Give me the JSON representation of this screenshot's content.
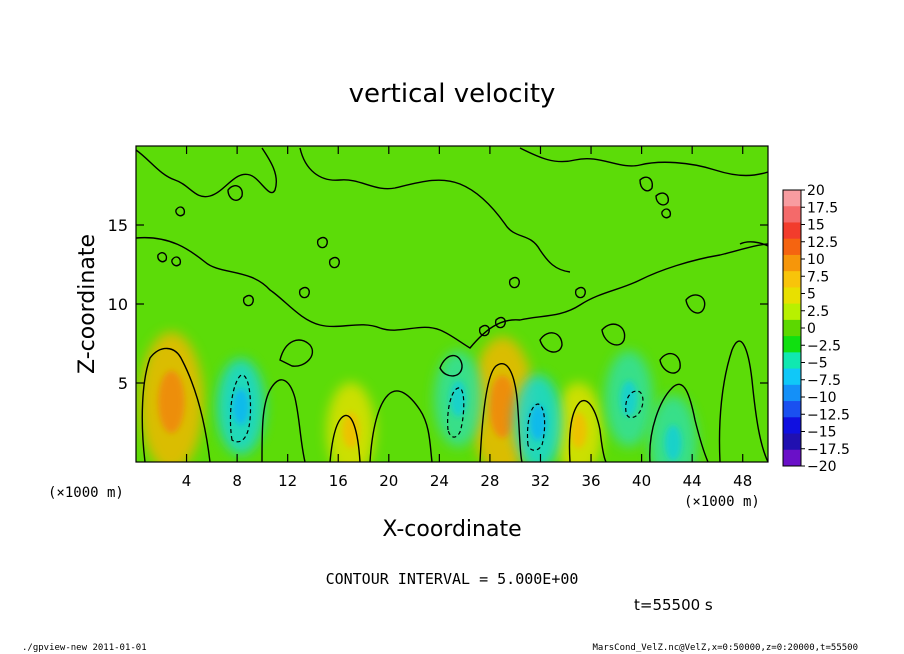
{
  "chart_data": {
    "type": "heatmap",
    "title": "vertical velocity",
    "xlabel": "X-coordinate",
    "ylabel": "Z-coordinate",
    "x_unit_left": "(×1000 m)",
    "x_unit_right": "(×1000 m)",
    "xlim": [
      0,
      50
    ],
    "ylim": [
      0,
      20
    ],
    "x_ticks": [
      "4",
      "8",
      "12",
      "16",
      "20",
      "24",
      "28",
      "32",
      "36",
      "40",
      "44",
      "48"
    ],
    "x_tick_values": [
      4,
      8,
      12,
      16,
      20,
      24,
      28,
      32,
      36,
      40,
      44,
      48
    ],
    "y_ticks": [
      "5",
      "10",
      "15"
    ],
    "y_tick_values": [
      5,
      10,
      15
    ],
    "contour_interval_label": "CONTOUR INTERVAL = 5.000E+00",
    "time_label": "t=55500 s",
    "colorbar": {
      "labels": [
        "20",
        "17.5",
        "15",
        "12.5",
        "10",
        "7.5",
        "5",
        "2.5",
        "0",
        "−2.5",
        "−5",
        "−7.5",
        "−10",
        "−12.5",
        "−15",
        "−17.5",
        "−20"
      ],
      "colors": [
        "#f89ca0",
        "#f46a6a",
        "#f23c2c",
        "#f56410",
        "#f6960a",
        "#f8c40a",
        "#e8e000",
        "#b8f000",
        "#5cd800",
        "#10e010",
        "#10e8b0",
        "#10c8f8",
        "#1490f8",
        "#1a50f0",
        "#1010e0",
        "#2010b0",
        "#6a10c8"
      ]
    },
    "features": [
      {
        "kind": "updraft",
        "x": 2.8,
        "z": 3.8,
        "max": 7.5
      },
      {
        "kind": "updraft",
        "x": 17,
        "z": 2,
        "max": 5
      },
      {
        "kind": "updraft",
        "x": 29,
        "z": 3.5,
        "max": 7.5
      },
      {
        "kind": "updraft",
        "x": 35,
        "z": 2,
        "max": 5
      },
      {
        "kind": "downdraft",
        "x": 8.3,
        "z": 3.5,
        "min": -7.5
      },
      {
        "kind": "downdraft",
        "x": 25.5,
        "z": 4,
        "min": -5
      },
      {
        "kind": "downdraft",
        "x": 31.8,
        "z": 2.5,
        "min": -7.5
      },
      {
        "kind": "downdraft",
        "x": 39,
        "z": 4,
        "min": -5
      },
      {
        "kind": "downdraft",
        "x": 42.5,
        "z": 1.2,
        "min": -5
      }
    ]
  },
  "footer": {
    "left": "./gpview-new   2011-01-01",
    "right": "MarsCond_VelZ.nc@VelZ,x=0:50000,z=0:20000,t=55500"
  }
}
